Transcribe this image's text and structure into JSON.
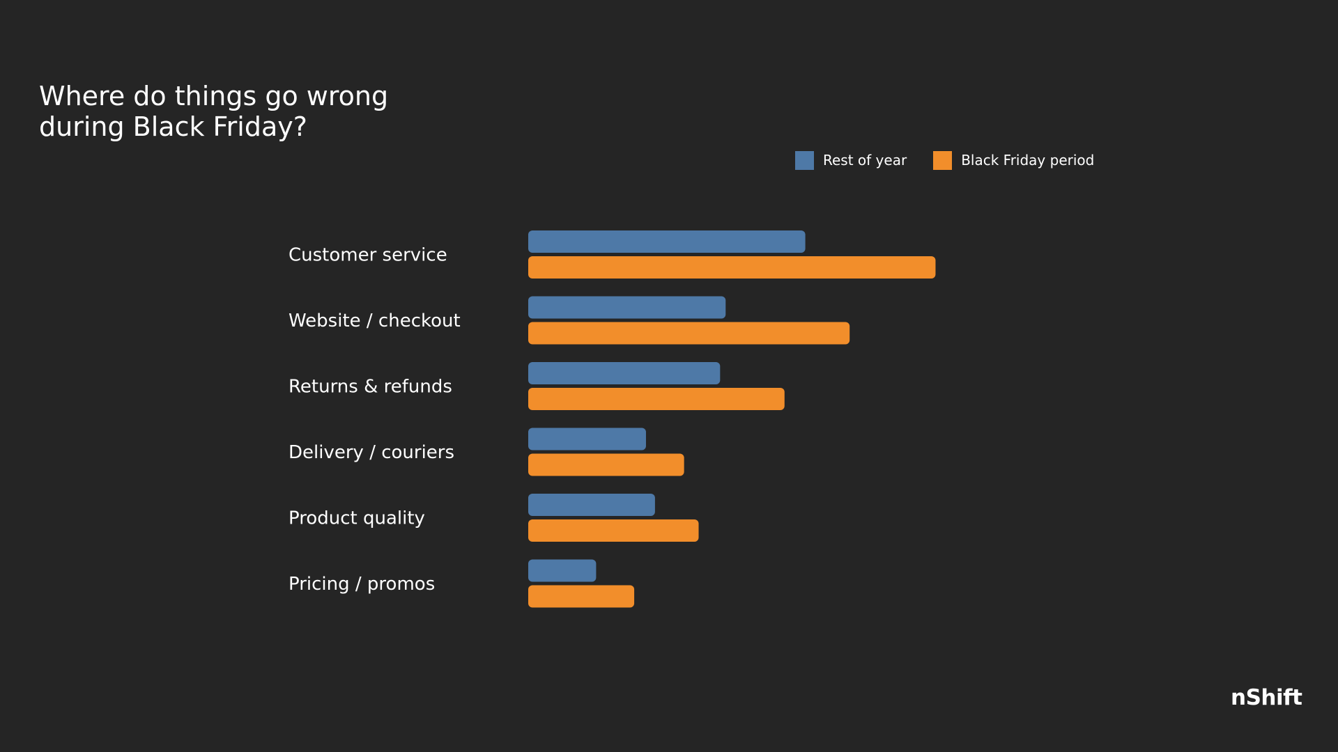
{
  "chart_data": {
    "type": "bar",
    "orientation": "horizontal",
    "title": "Where do things go wrong\nduring Black Friday?",
    "categories": [
      "Customer service",
      "Website / checkout",
      "Returns & refunds",
      "Delivery / couriers",
      "Product quality",
      "Pricing / promos"
    ],
    "series": [
      {
        "name": "Rest of year",
        "color": "#4E79A7",
        "values": [
          40,
          28.5,
          27.7,
          17,
          18.3,
          9.8
        ]
      },
      {
        "name": "Black Friday period",
        "color": "#F28E2B",
        "values": [
          58.8,
          46.4,
          37,
          22.5,
          24.6,
          15.3
        ]
      }
    ],
    "xlim": [
      0,
      100
    ],
    "grid": false,
    "legend": "top-right"
  },
  "brand": {
    "logo_text": "nShift"
  }
}
